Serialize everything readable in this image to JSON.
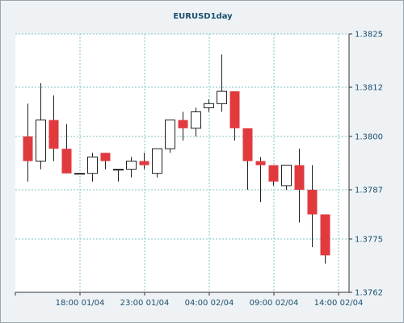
{
  "chart_data": {
    "type": "candlestick",
    "title": "EURUSD1day",
    "xlabel": "",
    "ylabel": "",
    "ylim": [
      1.3762,
      1.3825
    ],
    "y_ticks": [
      "1.3825",
      "1.3812",
      "1.3800",
      "1.3787",
      "1.3775",
      "1.3762"
    ],
    "x_ticks": [
      {
        "label": "18:00 01/04",
        "index": 4
      },
      {
        "label": "23:00 01/04",
        "index": 9
      },
      {
        "label": "04:00 02/04",
        "index": 14
      },
      {
        "label": "09:00 02/04",
        "index": 19
      },
      {
        "label": "14:00 02/04",
        "index": 24
      }
    ],
    "grid": true,
    "colors": {
      "up": "#ffffff",
      "down": "#e03a3e",
      "outline": "#222222",
      "grid": "#7fc6c6"
    },
    "candles": [
      {
        "o": 1.38,
        "h": 1.3808,
        "l": 1.3789,
        "c": 1.3794
      },
      {
        "o": 1.3794,
        "h": 1.3813,
        "l": 1.3792,
        "c": 1.3804
      },
      {
        "o": 1.3804,
        "h": 1.381,
        "l": 1.3794,
        "c": 1.3797
      },
      {
        "o": 1.3797,
        "h": 1.3803,
        "l": 1.3791,
        "c": 1.3791
      },
      {
        "o": 1.3791,
        "h": 1.3791,
        "l": 1.3791,
        "c": 1.3791
      },
      {
        "o": 1.3791,
        "h": 1.3796,
        "l": 1.3789,
        "c": 1.3795
      },
      {
        "o": 1.3796,
        "h": 1.3796,
        "l": 1.3792,
        "c": 1.3794
      },
      {
        "o": 1.3792,
        "h": 1.3792,
        "l": 1.3789,
        "c": 1.3792
      },
      {
        "o": 1.3792,
        "h": 1.3795,
        "l": 1.379,
        "c": 1.3794
      },
      {
        "o": 1.3794,
        "h": 1.3796,
        "l": 1.3792,
        "c": 1.3793
      },
      {
        "o": 1.3791,
        "h": 1.3797,
        "l": 1.379,
        "c": 1.3797
      },
      {
        "o": 1.3797,
        "h": 1.3804,
        "l": 1.3796,
        "c": 1.3804
      },
      {
        "o": 1.3804,
        "h": 1.3806,
        "l": 1.3799,
        "c": 1.3802
      },
      {
        "o": 1.3802,
        "h": 1.3807,
        "l": 1.38,
        "c": 1.3806
      },
      {
        "o": 1.3807,
        "h": 1.3809,
        "l": 1.3806,
        "c": 1.3808
      },
      {
        "o": 1.3808,
        "h": 1.382,
        "l": 1.3806,
        "c": 1.3811
      },
      {
        "o": 1.3811,
        "h": 1.3811,
        "l": 1.3799,
        "c": 1.3802
      },
      {
        "o": 1.3802,
        "h": 1.3802,
        "l": 1.3787,
        "c": 1.3794
      },
      {
        "o": 1.3794,
        "h": 1.3795,
        "l": 1.3784,
        "c": 1.3793
      },
      {
        "o": 1.3793,
        "h": 1.3793,
        "l": 1.3788,
        "c": 1.3789
      },
      {
        "o": 1.3788,
        "h": 1.3793,
        "l": 1.3787,
        "c": 1.3793
      },
      {
        "o": 1.3793,
        "h": 1.3797,
        "l": 1.3779,
        "c": 1.3787
      },
      {
        "o": 1.3787,
        "h": 1.3793,
        "l": 1.3773,
        "c": 1.3781
      },
      {
        "o": 1.3781,
        "h": 1.3781,
        "l": 1.3769,
        "c": 1.3771
      }
    ]
  }
}
